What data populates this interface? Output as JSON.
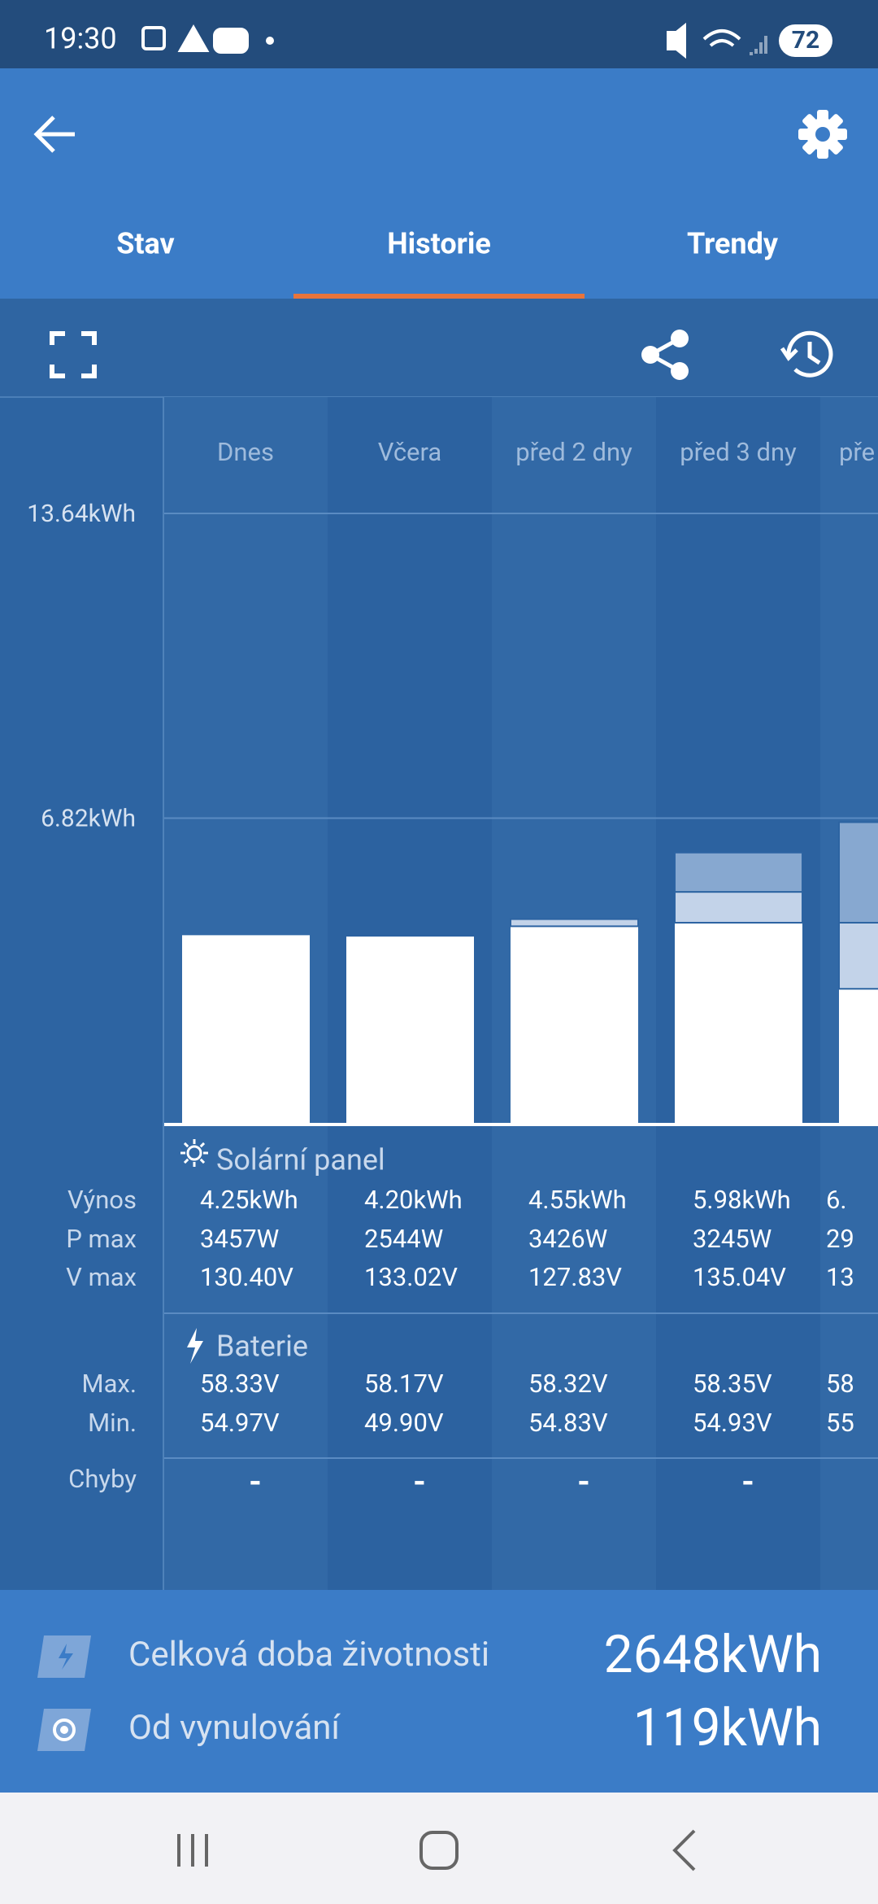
{
  "status_bar": {
    "time": "19:30",
    "battery": "72"
  },
  "tabs": [
    "Stav",
    "Historie",
    "Trendy"
  ],
  "chart_data": {
    "type": "bar",
    "categories": [
      "Dnes",
      "Včera",
      "před 2 dny",
      "před 3 dny",
      "pře"
    ],
    "ylim": [
      0,
      13.64
    ],
    "yticks": [
      {
        "value": 13.64,
        "label": "13.64kWh"
      },
      {
        "value": 6.82,
        "label": "6.82kWh"
      }
    ],
    "series": [
      {
        "color": "#ffffff",
        "values": [
          4.2,
          4.17,
          4.4,
          4.48,
          3.0
        ]
      },
      {
        "color": "#c3d3e9",
        "values": [
          0,
          0,
          0.16,
          0.69,
          1.48
        ]
      },
      {
        "color": "#87a8d0",
        "values": [
          0,
          0,
          0,
          0.88,
          2.25
        ]
      }
    ]
  },
  "table": {
    "sections": [
      {
        "title": "Solární panel",
        "rows": [
          {
            "label": "Výnos",
            "values": [
              "4.25kWh",
              "4.20kWh",
              "4.55kWh",
              "5.98kWh",
              "6."
            ]
          },
          {
            "label": "P max",
            "values": [
              "3457W",
              "2544W",
              "3426W",
              "3245W",
              "29"
            ]
          },
          {
            "label": "V max",
            "values": [
              "130.40V",
              "133.02V",
              "127.83V",
              "135.04V",
              "13"
            ]
          }
        ]
      },
      {
        "title": "Baterie",
        "rows": [
          {
            "label": "Max.",
            "values": [
              "58.33V",
              "58.17V",
              "58.32V",
              "58.35V",
              "58"
            ]
          },
          {
            "label": "Min.",
            "values": [
              "54.97V",
              "49.90V",
              "54.83V",
              "54.93V",
              "55"
            ]
          }
        ]
      }
    ],
    "errors": {
      "label": "Chyby",
      "values": [
        "-",
        "-",
        "-",
        "-"
      ]
    }
  },
  "footer": {
    "rows": [
      {
        "label": "Celková doba životnosti",
        "value": "2648kWh"
      },
      {
        "label": "Od vynulování",
        "value": "119kWh"
      }
    ]
  }
}
